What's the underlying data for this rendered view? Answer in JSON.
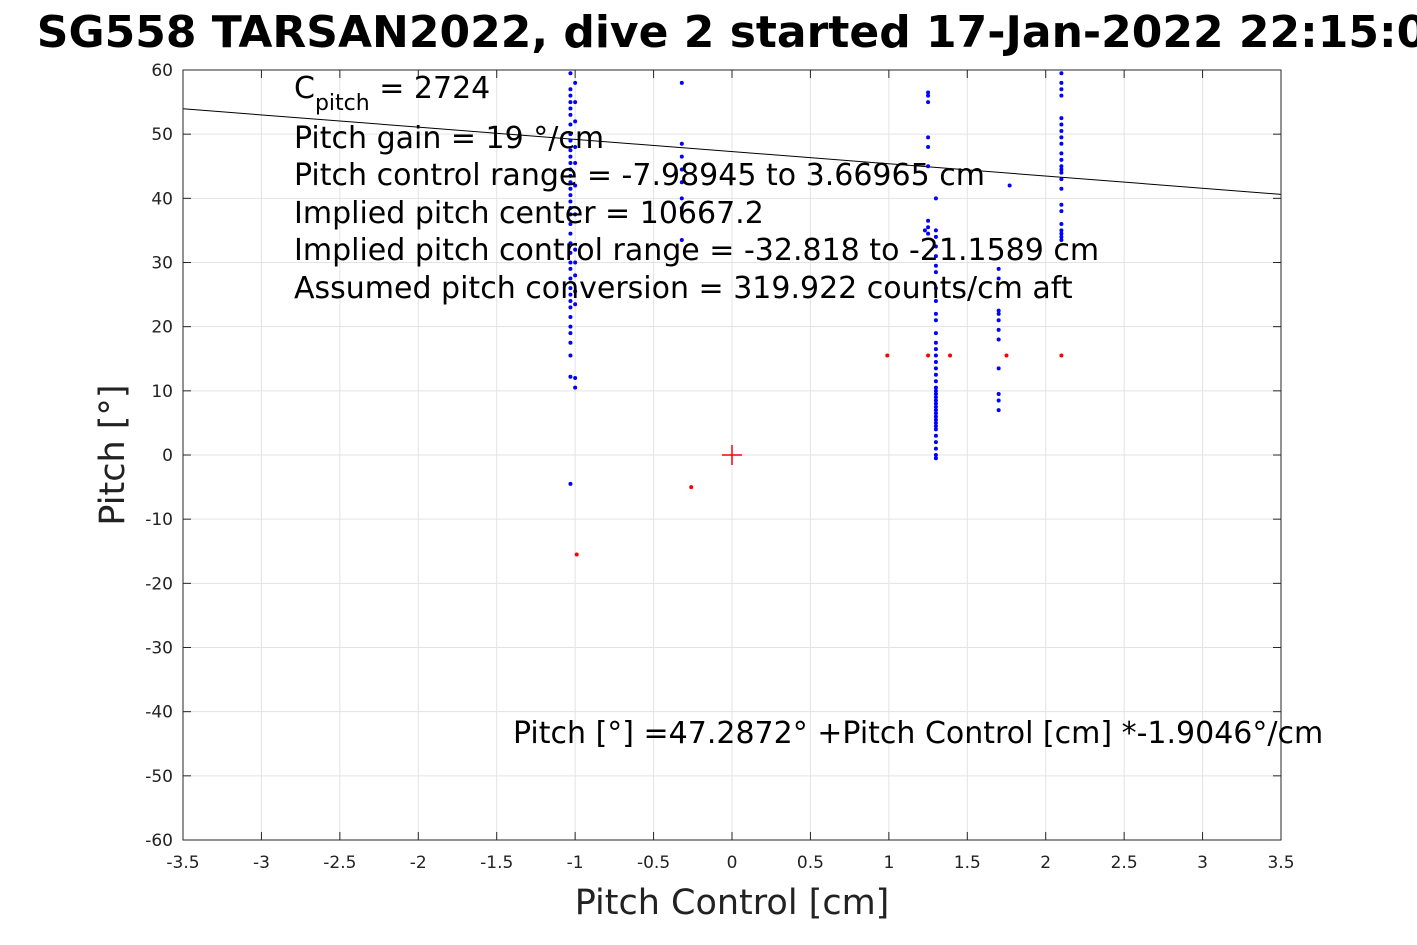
{
  "chart_data": {
    "type": "scatter",
    "title": "SG558 TARSAN2022, dive 2 started 17-Jan-2022 22:15:0",
    "xlabel": "Pitch Control [cm]",
    "ylabel": "Pitch [°]",
    "xlim": [
      -3.5,
      3.5
    ],
    "ylim": [
      -60,
      60
    ],
    "xticks": [
      -3.5,
      -3,
      -2.5,
      -2,
      -1.5,
      -1,
      -0.5,
      0,
      0.5,
      1,
      1.5,
      2,
      2.5,
      3,
      3.5
    ],
    "yticks": [
      -60,
      -50,
      -40,
      -30,
      -20,
      -10,
      0,
      10,
      20,
      30,
      40,
      50,
      60
    ],
    "grid": true,
    "fit_line": {
      "intercept": 47.2872,
      "slope": -1.9046,
      "color": "#000000"
    },
    "center_marker": {
      "x": 0,
      "y": 0,
      "color": "#ff0000",
      "shape": "plus"
    },
    "series": [
      {
        "color": "#0000ff",
        "points": [
          [
            -1.03,
            59.5
          ],
          [
            -1.03,
            57.0
          ],
          [
            -1.03,
            56.0
          ],
          [
            -1.03,
            55.0
          ],
          [
            -1.03,
            54.0
          ],
          [
            -1.03,
            53.0
          ],
          [
            -1.03,
            51.5
          ],
          [
            -1.03,
            50.0
          ],
          [
            -1.03,
            49.0
          ],
          [
            -1.03,
            47.5
          ],
          [
            -1.03,
            46.5
          ],
          [
            -1.03,
            45.5
          ],
          [
            -1.03,
            44.5
          ],
          [
            -1.03,
            43.5
          ],
          [
            -1.03,
            42.5
          ],
          [
            -1.03,
            41.5
          ],
          [
            -1.03,
            40.5
          ],
          [
            -1.03,
            39.5
          ],
          [
            -1.03,
            38.5
          ],
          [
            -1.03,
            37.5
          ],
          [
            -1.03,
            36.0
          ],
          [
            -1.03,
            34.5
          ],
          [
            -1.03,
            33.0
          ],
          [
            -1.03,
            31.5
          ],
          [
            -1.03,
            30.0
          ],
          [
            -1.03,
            29.0
          ],
          [
            -1.03,
            27.5
          ],
          [
            -1.03,
            26.0
          ],
          [
            -1.03,
            25.0
          ],
          [
            -1.03,
            24.0
          ],
          [
            -1.03,
            23.0
          ],
          [
            -1.03,
            21.5
          ],
          [
            -1.03,
            20.0
          ],
          [
            -1.03,
            19.0
          ],
          [
            -1.03,
            17.5
          ],
          [
            -1.03,
            15.5
          ],
          [
            -1.03,
            12.2
          ],
          [
            -1.03,
            -4.5
          ],
          [
            -1.0,
            58.0
          ],
          [
            -1.0,
            55.0
          ],
          [
            -1.0,
            52.0
          ],
          [
            -1.0,
            48.0
          ],
          [
            -1.0,
            45.5
          ],
          [
            -1.0,
            42.0
          ],
          [
            -1.0,
            37.5
          ],
          [
            -1.0,
            32.0
          ],
          [
            -1.0,
            30.0
          ],
          [
            -1.0,
            28.0
          ],
          [
            -1.0,
            25.5
          ],
          [
            -1.0,
            23.5
          ],
          [
            -1.0,
            12.0
          ],
          [
            -1.0,
            10.5
          ],
          [
            -0.32,
            58.0
          ],
          [
            -0.32,
            48.5
          ],
          [
            -0.32,
            46.5
          ],
          [
            -0.32,
            44.5
          ],
          [
            -0.32,
            42.5
          ],
          [
            -0.32,
            40.0
          ],
          [
            -0.32,
            38.5
          ],
          [
            -0.32,
            33.5
          ],
          [
            1.25,
            56.5
          ],
          [
            1.25,
            56.0
          ],
          [
            1.25,
            55.0
          ],
          [
            1.25,
            49.5
          ],
          [
            1.25,
            48.0
          ],
          [
            1.25,
            45.0
          ],
          [
            1.25,
            36.5
          ],
          [
            1.25,
            35.5
          ],
          [
            1.25,
            34.5
          ],
          [
            1.23,
            35.0
          ],
          [
            1.3,
            40.0
          ],
          [
            1.3,
            35.0
          ],
          [
            1.3,
            34.0
          ],
          [
            1.3,
            32.5
          ],
          [
            1.3,
            31.0
          ],
          [
            1.3,
            29.5
          ],
          [
            1.3,
            28.5
          ],
          [
            1.3,
            26.0
          ],
          [
            1.3,
            24.0
          ],
          [
            1.3,
            22.0
          ],
          [
            1.3,
            21.0
          ],
          [
            1.3,
            19.0
          ],
          [
            1.3,
            17.5
          ],
          [
            1.3,
            16.5
          ],
          [
            1.3,
            15.5
          ],
          [
            1.3,
            14.5
          ],
          [
            1.3,
            13.5
          ],
          [
            1.3,
            12.5
          ],
          [
            1.3,
            11.5
          ],
          [
            1.3,
            10.5
          ],
          [
            1.3,
            10.0
          ],
          [
            1.3,
            9.5
          ],
          [
            1.3,
            9.0
          ],
          [
            1.3,
            8.5
          ],
          [
            1.3,
            8.0
          ],
          [
            1.3,
            7.5
          ],
          [
            1.3,
            7.0
          ],
          [
            1.3,
            6.5
          ],
          [
            1.3,
            6.0
          ],
          [
            1.3,
            5.5
          ],
          [
            1.3,
            5.0
          ],
          [
            1.3,
            4.5
          ],
          [
            1.3,
            4.0
          ],
          [
            1.3,
            3.0
          ],
          [
            1.3,
            2.0
          ],
          [
            1.3,
            1.0
          ],
          [
            1.3,
            0.0
          ],
          [
            1.3,
            -0.5
          ],
          [
            1.7,
            29.0
          ],
          [
            1.7,
            27.5
          ],
          [
            1.7,
            22.5
          ],
          [
            1.7,
            22.0
          ],
          [
            1.7,
            21.0
          ],
          [
            1.7,
            19.5
          ],
          [
            1.7,
            18.0
          ],
          [
            1.7,
            13.5
          ],
          [
            1.7,
            9.5
          ],
          [
            1.7,
            8.5
          ],
          [
            1.7,
            7.0
          ],
          [
            1.77,
            42.0
          ],
          [
            2.1,
            59.5
          ],
          [
            2.1,
            58.0
          ],
          [
            2.1,
            57.0
          ],
          [
            2.1,
            56.0
          ],
          [
            2.1,
            52.5
          ],
          [
            2.1,
            51.5
          ],
          [
            2.1,
            50.5
          ],
          [
            2.1,
            49.5
          ],
          [
            2.1,
            48.5
          ],
          [
            2.1,
            47.0
          ],
          [
            2.1,
            46.0
          ],
          [
            2.1,
            45.0
          ],
          [
            2.1,
            44.5
          ],
          [
            2.1,
            44.0
          ],
          [
            2.1,
            43.0
          ],
          [
            2.1,
            41.5
          ],
          [
            2.1,
            39.0
          ],
          [
            2.1,
            38.0
          ],
          [
            2.1,
            36.0
          ],
          [
            2.1,
            35.0
          ],
          [
            2.1,
            34.5
          ],
          [
            2.1,
            34.0
          ],
          [
            2.1,
            33.5
          ]
        ]
      },
      {
        "color": "#ff0000",
        "points": [
          [
            -0.99,
            -15.5
          ],
          [
            -0.26,
            -5.0
          ],
          [
            0.99,
            15.5
          ],
          [
            1.25,
            15.5
          ],
          [
            1.39,
            15.5
          ],
          [
            1.75,
            15.5
          ],
          [
            2.1,
            15.5
          ]
        ]
      }
    ],
    "annotations": {
      "c_pitch_main": "C",
      "c_pitch_sub": "pitch",
      "c_pitch_value": " = 2724",
      "pitch_gain": "Pitch gain = 19 °/cm",
      "pitch_control_range": "Pitch control range = -7.98945 to 3.66965 cm",
      "implied_pitch_center": "Implied pitch center = 10667.2",
      "implied_pitch_control_range": "Implied pitch control range = -32.818 to -21.1589 cm",
      "assumed_pitch_conversion": "Assumed pitch conversion = 319.922 counts/cm aft",
      "fit_equation": "Pitch [°] =47.2872° +Pitch Control [cm] *-1.9046°/cm"
    }
  }
}
